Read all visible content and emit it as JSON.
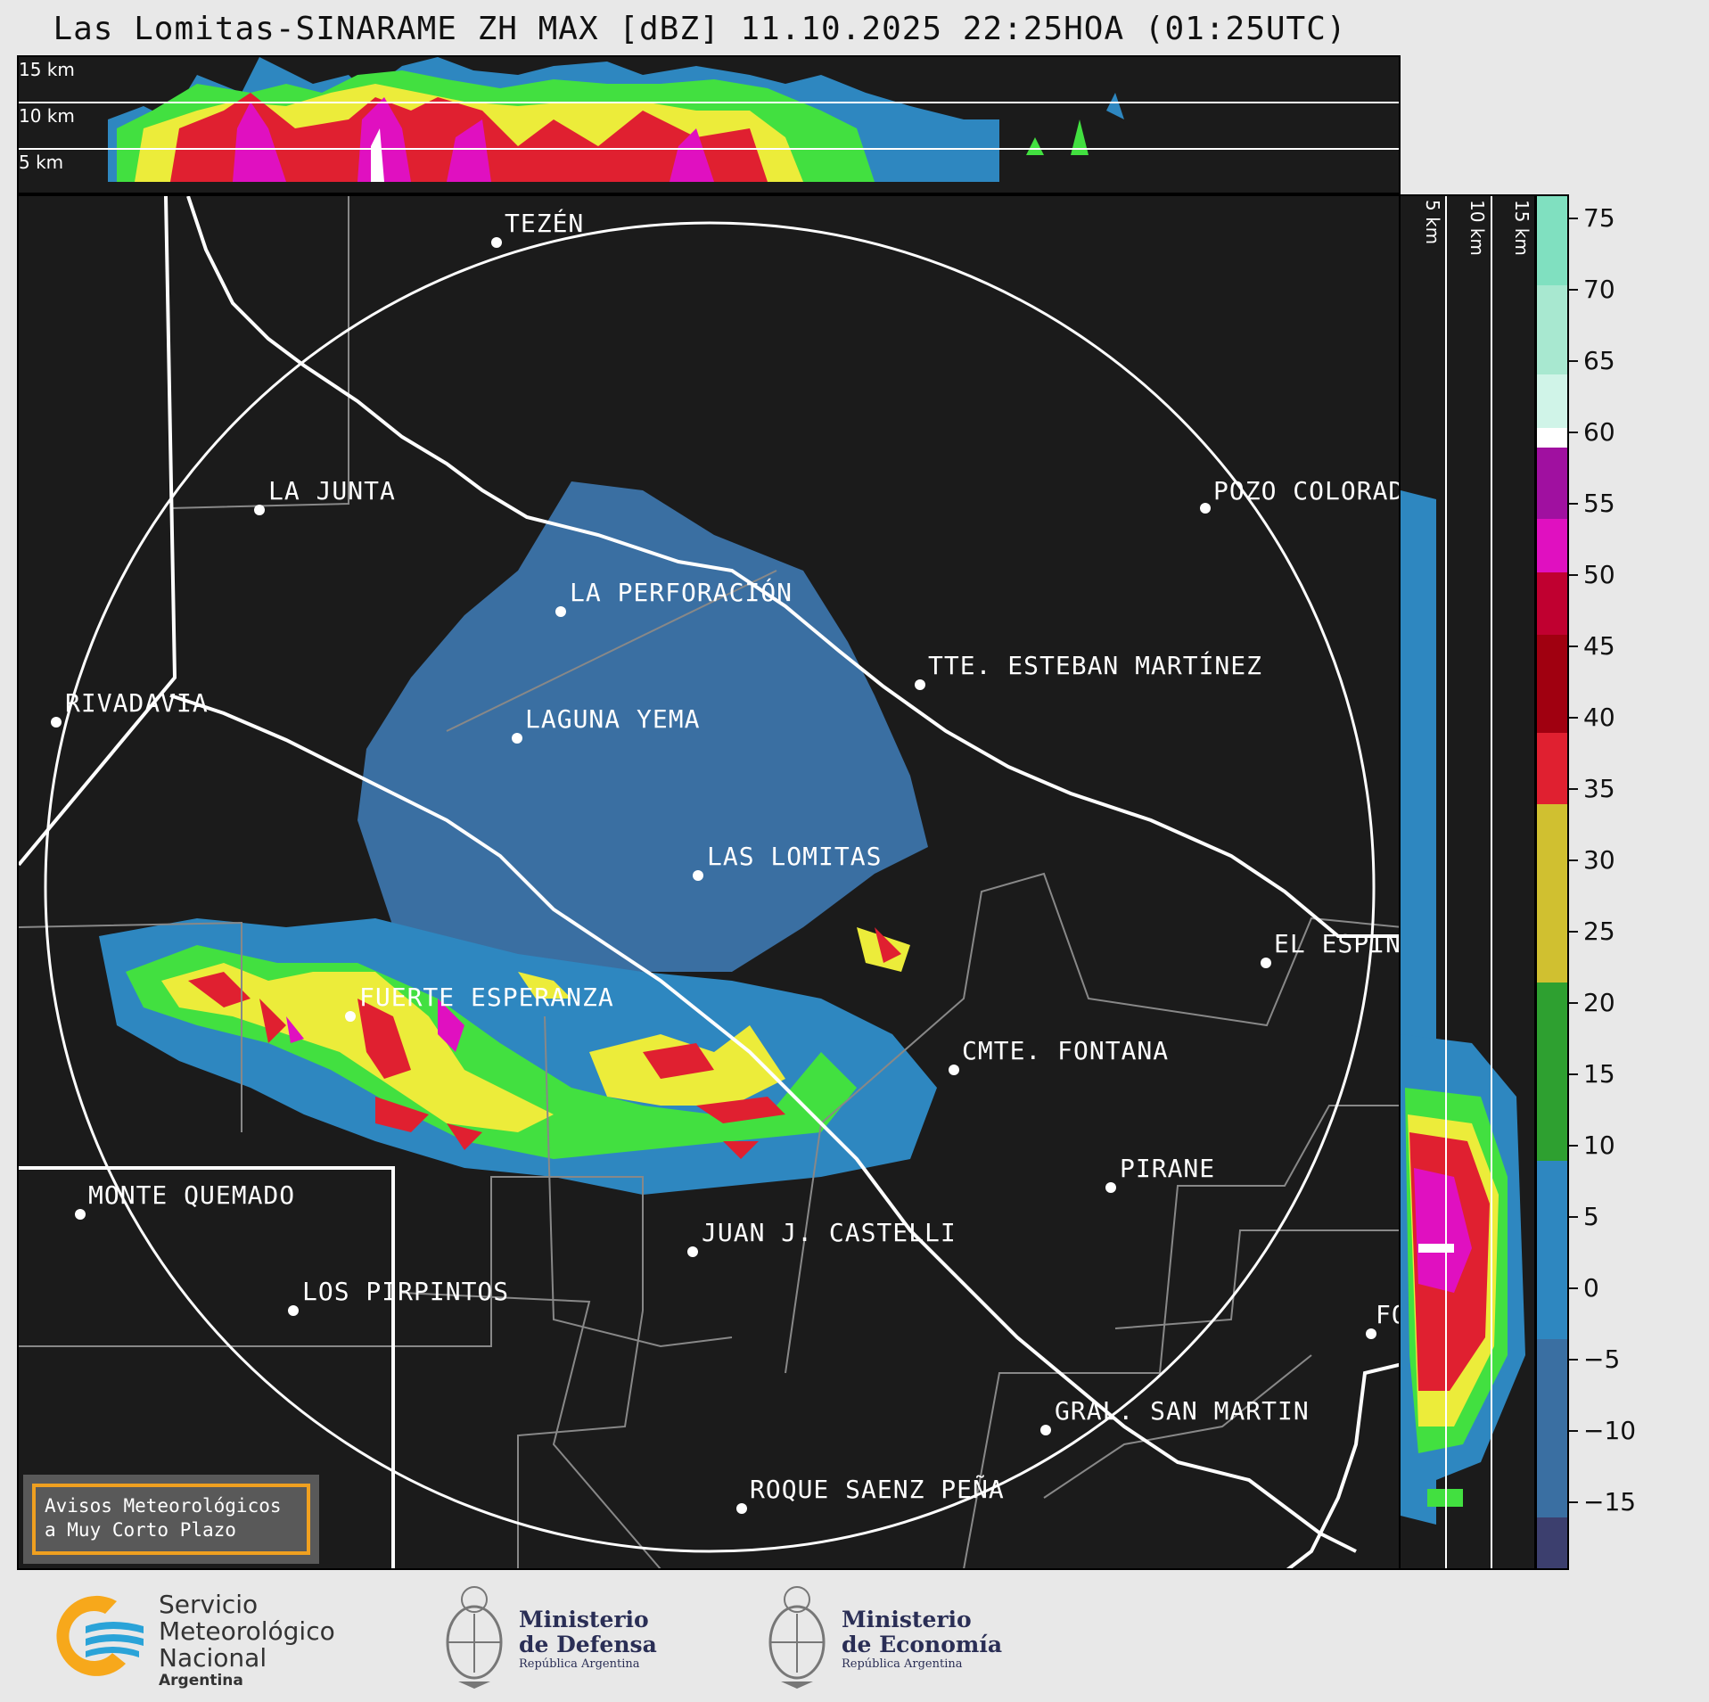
{
  "title": "Las Lomitas-SINARAME ZH MAX [dBZ] 11.10.2025 22:25HOA (01:25UTC)",
  "top_panel": {
    "km_labels": [
      "15 km",
      "10 km",
      "5 km"
    ]
  },
  "side_panel": {
    "km_labels": [
      "5 km",
      "10 km",
      "15 km"
    ]
  },
  "map": {
    "cities": [
      {
        "name": "TEZÉN"
      },
      {
        "name": "LA JUNTA"
      },
      {
        "name": "POZO COLORAD"
      },
      {
        "name": "LA PERFORACIÓN"
      },
      {
        "name": "TTE. ESTEBAN MARTÍNEZ"
      },
      {
        "name": "RIVADAVIA"
      },
      {
        "name": "LAGUNA YEMA"
      },
      {
        "name": "LAS LOMITAS"
      },
      {
        "name": "EL ESPIN"
      },
      {
        "name": "FUERTE ESPERANZA"
      },
      {
        "name": "CMTE. FONTANA"
      },
      {
        "name": "PIRANE"
      },
      {
        "name": "MONTE QUEMADO"
      },
      {
        "name": "JUAN J. CASTELLI"
      },
      {
        "name": "LOS PIRPINTOS"
      },
      {
        "name": "FO"
      },
      {
        "name": "GRAL. SAN MARTIN"
      },
      {
        "name": "ROQUE SAENZ PEÑA"
      }
    ]
  },
  "colorbar": {
    "unit": "dBZ",
    "ticks": [
      "75",
      "70",
      "65",
      "60",
      "55",
      "50",
      "45",
      "40",
      "35",
      "30",
      "25",
      "20",
      "15",
      "10",
      "5",
      "0",
      "−5",
      "−10",
      "−15"
    ],
    "colors": {
      "c_m15": "#3c3f6e",
      "c_m5": "#3d5a8c",
      "c_0": "#3a6fa2",
      "c_10": "#2e87c0",
      "c_15": "#2bb0e0",
      "c_20": "#42e040",
      "c_25": "#2ea030",
      "c_30": "#ecec3a",
      "c_35": "#d0c030",
      "c_40": "#e09020",
      "c_45": "#e02030",
      "c_50": "#a00010",
      "c_55": "#e010c0",
      "c_58": "#a010a0",
      "c_60": "#ffffff",
      "c_70": "#b0ead0",
      "c_75": "#80e0c0"
    }
  },
  "notice": {
    "line1": "Avisos Meteorológicos",
    "line2": "a Muy Corto Plazo"
  },
  "logos": {
    "smn": {
      "line1": "Servicio",
      "line2": "Meteorológico",
      "line3": "Nacional",
      "line4": "Argentina"
    },
    "defensa": {
      "line1": "Ministerio",
      "line2": "de Defensa",
      "line3": "República Argentina"
    },
    "economia": {
      "line1": "Ministerio",
      "line2": "de Economía",
      "line3": "República Argentina"
    }
  }
}
